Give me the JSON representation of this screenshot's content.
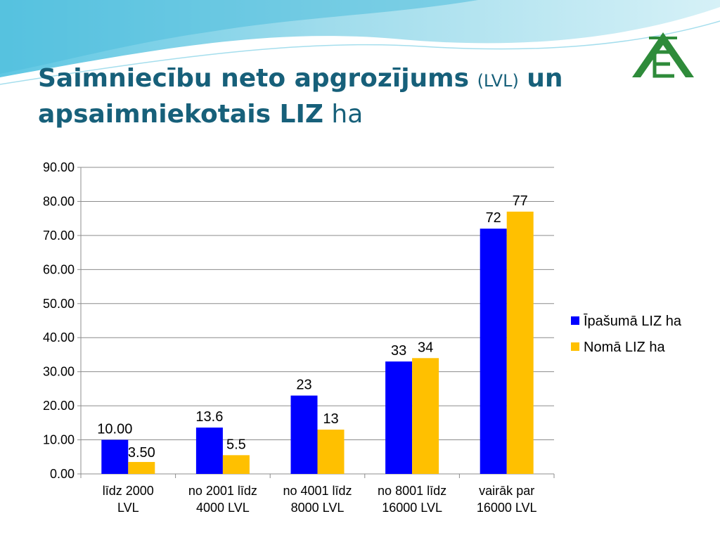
{
  "slide": {
    "title_part1": "Saimniecību neto apgrozījums",
    "title_part2": "(LVL)",
    "title_part3": "un",
    "title_part4": "apsaimniekotais LIZ",
    "title_part5": "ha",
    "logo": "XE-logo"
  },
  "colors": {
    "title": "#17607a",
    "series_owned": "#0000ff",
    "series_rented": "#ffc000",
    "banner_light": "#c7ecf5",
    "banner_dark": "#5fc7e3",
    "logo": "#2e8b3a"
  },
  "chart_data": {
    "type": "bar",
    "categories": [
      [
        "līdz 2000",
        "LVL"
      ],
      [
        "no 2001 līdz",
        "4000 LVL"
      ],
      [
        "no 4001 līdz",
        "8000 LVL"
      ],
      [
        "no 8001 līdz",
        "16000 LVL"
      ],
      [
        "vairāk par",
        "16000 LVL"
      ]
    ],
    "series": [
      {
        "name": "Īpašumā LIZ ha",
        "color": "#0000ff",
        "values": [
          10,
          13.6,
          23,
          33,
          72
        ],
        "labels": [
          "10.00",
          "13.6",
          "23",
          "33",
          "72"
        ]
      },
      {
        "name": "Nomā LIZ ha",
        "color": "#ffc000",
        "values": [
          3.5,
          5.5,
          13,
          34,
          77
        ],
        "labels": [
          "3.50",
          "5.5",
          "13",
          "34",
          "77"
        ]
      }
    ],
    "ylim": [
      0,
      90
    ],
    "yticks": [
      "0.00",
      "10.00",
      "20.00",
      "30.00",
      "40.00",
      "50.00",
      "60.00",
      "70.00",
      "80.00",
      "90.00"
    ],
    "grid": true,
    "legend": "right"
  }
}
